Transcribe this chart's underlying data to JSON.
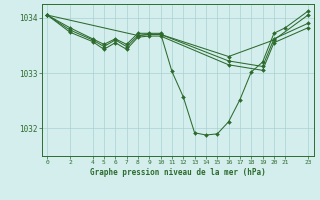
{
  "background_color": "#d4eeee",
  "grid_color": "#aad0d0",
  "line_color": "#2d6b2d",
  "marker_color": "#2d6b2d",
  "title": "Graphe pression niveau de la mer (hPa)",
  "ylim": [
    1031.5,
    1034.25
  ],
  "xlim": [
    -0.5,
    23.5
  ],
  "yticks": [
    1032,
    1033,
    1034
  ],
  "xticks": [
    0,
    2,
    4,
    5,
    6,
    7,
    8,
    9,
    10,
    11,
    12,
    13,
    14,
    15,
    16,
    17,
    18,
    19,
    20,
    21,
    23
  ],
  "series1": [
    [
      0,
      1034.05
    ],
    [
      2,
      1033.82
    ],
    [
      4,
      1033.62
    ],
    [
      5,
      1033.52
    ],
    [
      6,
      1033.62
    ],
    [
      7,
      1033.52
    ],
    [
      8,
      1033.72
    ],
    [
      9,
      1033.72
    ],
    [
      10,
      1033.72
    ],
    [
      11,
      1033.03
    ],
    [
      12,
      1032.57
    ],
    [
      13,
      1031.92
    ],
    [
      14,
      1031.88
    ],
    [
      15,
      1031.9
    ],
    [
      16,
      1032.12
    ],
    [
      17,
      1032.52
    ],
    [
      18,
      1033.02
    ],
    [
      19,
      1033.2
    ],
    [
      20,
      1033.72
    ],
    [
      21,
      1033.82
    ],
    [
      23,
      1034.12
    ]
  ],
  "series2": [
    [
      0,
      1034.05
    ],
    [
      2,
      1033.78
    ],
    [
      4,
      1033.6
    ],
    [
      5,
      1033.48
    ],
    [
      6,
      1033.6
    ],
    [
      7,
      1033.48
    ],
    [
      8,
      1033.68
    ],
    [
      9,
      1033.7
    ],
    [
      10,
      1033.7
    ],
    [
      16,
      1033.22
    ],
    [
      19,
      1033.12
    ],
    [
      20,
      1033.62
    ],
    [
      23,
      1033.9
    ]
  ],
  "series3": [
    [
      0,
      1034.05
    ],
    [
      2,
      1033.74
    ],
    [
      4,
      1033.57
    ],
    [
      5,
      1033.43
    ],
    [
      6,
      1033.55
    ],
    [
      7,
      1033.43
    ],
    [
      8,
      1033.65
    ],
    [
      9,
      1033.67
    ],
    [
      10,
      1033.67
    ],
    [
      16,
      1033.15
    ],
    [
      19,
      1033.05
    ],
    [
      20,
      1033.55
    ],
    [
      23,
      1033.82
    ]
  ],
  "series4": [
    [
      0,
      1034.05
    ],
    [
      8,
      1033.68
    ],
    [
      9,
      1033.7
    ],
    [
      10,
      1033.7
    ],
    [
      16,
      1033.3
    ],
    [
      20,
      1033.6
    ],
    [
      23,
      1034.05
    ]
  ]
}
